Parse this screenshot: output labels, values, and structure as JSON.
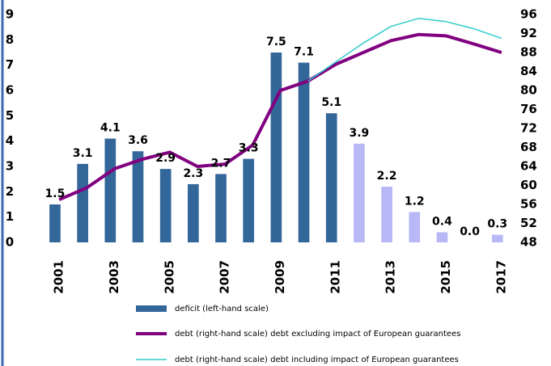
{
  "chart_data": {
    "type": "bar",
    "categories": [
      "2001",
      null,
      "2003",
      null,
      "2005",
      null,
      "2007",
      null,
      "2009",
      null,
      "2011",
      null,
      "2013",
      null,
      "2015",
      null,
      "2017"
    ],
    "ylim": [
      0,
      9
    ],
    "yticks": [
      0,
      1,
      2,
      3,
      4,
      5,
      6,
      7,
      8,
      9
    ],
    "y2lim": [
      48,
      96
    ],
    "y2ticks": [
      48,
      52,
      56,
      60,
      64,
      68,
      72,
      76,
      80,
      84,
      88,
      92,
      96
    ],
    "series": [
      {
        "name": "deficit (left-hand scale)",
        "type": "bar",
        "color": "#336699",
        "colors": [
          "#336699",
          "#336699",
          "#336699",
          "#336699",
          "#336699",
          "#336699",
          "#336699",
          "#336699",
          "#336699",
          "#336699",
          "#336699",
          "#b8b8f6",
          "#b8b8f6",
          "#b8b8f6",
          "#b8b8f6",
          "#b8b8f6",
          "#b8b8f6"
        ],
        "values": [
          1.5,
          3.1,
          4.1,
          3.6,
          2.9,
          2.3,
          2.7,
          3.3,
          7.5,
          7.1,
          5.1,
          3.9,
          2.2,
          1.2,
          0.4,
          0.0,
          0.3
        ],
        "value_labels": [
          "1.5",
          "3.1",
          "4.1",
          "3.6",
          "2.9",
          "2.3",
          "2.7",
          "3.3",
          "7.5",
          "7.1",
          "5.1",
          "3.9",
          "2.2",
          "1.2",
          "0.4",
          "0.0",
          "0.3"
        ]
      },
      {
        "name": "debt (right-hand scale) debt excluding impact of European guarantees",
        "type": "line",
        "axis": "y2",
        "color": "#800080",
        "width": 4,
        "values": [
          57,
          59.5,
          63.5,
          65.5,
          67,
          64,
          64.5,
          68.5,
          80,
          82,
          85.5,
          88,
          90.5,
          91.8,
          91.5,
          89.8,
          88
        ]
      },
      {
        "name": "debt (right-hand scale) debt including impact of European guarantees",
        "type": "line",
        "axis": "y2",
        "color": "#33cccc",
        "width": 1.5,
        "values": [
          null,
          null,
          null,
          null,
          null,
          null,
          null,
          null,
          null,
          82,
          86,
          90,
          93.5,
          95.2,
          94.5,
          93,
          91
        ]
      }
    ]
  }
}
